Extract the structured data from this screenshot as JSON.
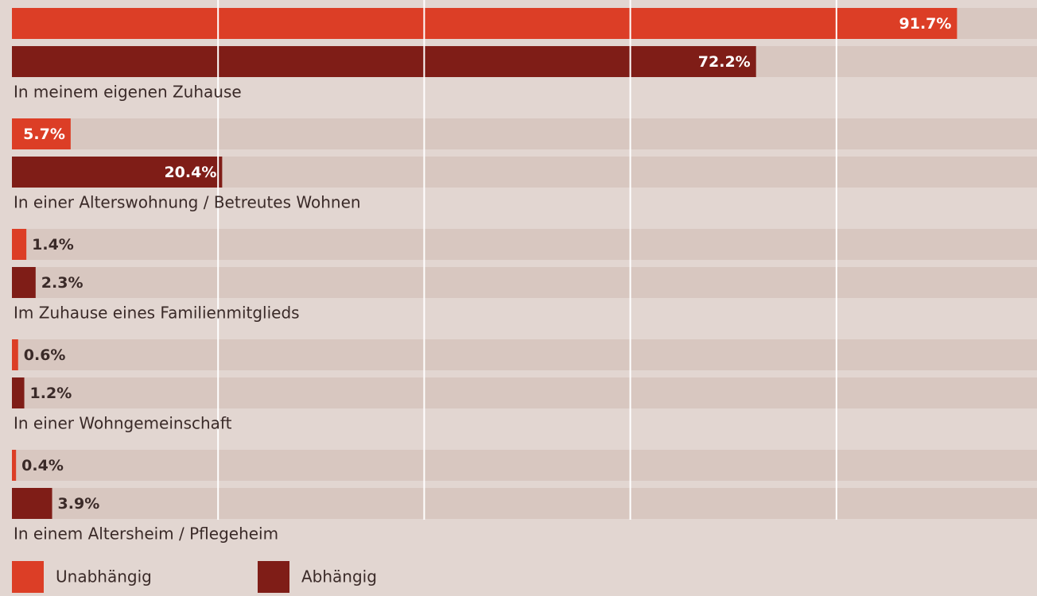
{
  "chart_data": {
    "type": "bar",
    "orientation": "horizontal",
    "categories": [
      "In meinem eigenen Zuhause",
      "In einer Alterswohnung / Betreutes Wohnen",
      "Im Zuhause eines Familienmitglieds",
      "In einer Wohngemeinschaft",
      "In einem Altersheim / Pflegeheim"
    ],
    "series": [
      {
        "name": "Unabhängig",
        "color": "#dc3e26",
        "values": [
          91.7,
          5.7,
          1.4,
          0.6,
          0.4
        ],
        "value_labels": [
          "91.7%",
          "5.7%",
          "1.4%",
          "0.6%",
          "0.4%"
        ]
      },
      {
        "name": "Abhängig",
        "color": "#7f1d17",
        "values": [
          72.2,
          20.4,
          2.3,
          1.2,
          3.9
        ],
        "value_labels": [
          "72.2%",
          "20.4%",
          "2.3%",
          "1.2%",
          "3.9%"
        ]
      }
    ],
    "xlim": [
      0,
      100
    ],
    "xticks": [
      0,
      20,
      40,
      60,
      80,
      100
    ],
    "grid": true,
    "legend": "bottom-left"
  }
}
